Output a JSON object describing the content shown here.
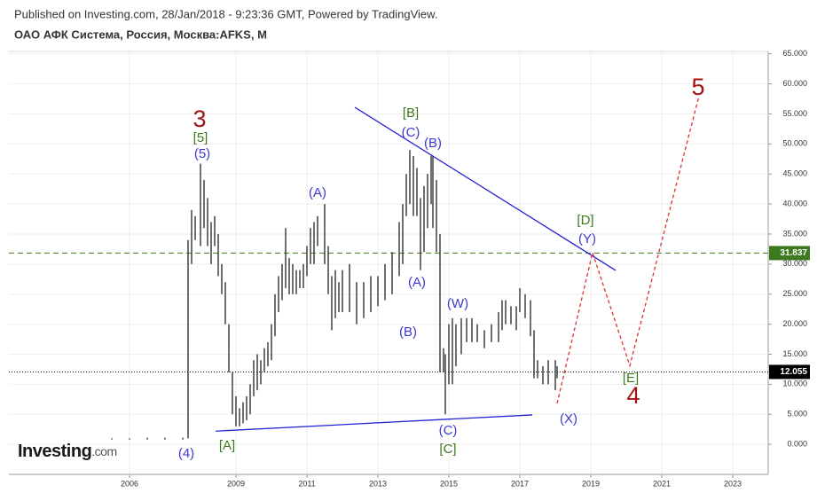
{
  "chart_data": {
    "type": "ohlc",
    "published": "Published on Investing.com, 28/Jan/2018 - 9:23:36 GMT, Powered by TradingView.",
    "title": "ОАО АФК Система, Россия, Москва:AFKS, M",
    "logo": {
      "brand": "Investing",
      "suffix": ".com"
    },
    "xlim": [
      2002.6,
      2024
    ],
    "xticks": [
      2006,
      2009,
      2011,
      2013,
      2015,
      2017,
      2019,
      2021,
      2023
    ],
    "ylim": [
      -5,
      65.4
    ],
    "yticks": [
      {
        "value": 0,
        "label": "0.000"
      },
      {
        "value": 5,
        "label": "5.000"
      },
      {
        "value": 10,
        "label": "10.000"
      },
      {
        "value": 15,
        "label": "15.000"
      },
      {
        "value": 20,
        "label": "20.000"
      },
      {
        "value": 25,
        "label": "25.000"
      },
      {
        "value": 30,
        "label": "30.000"
      },
      {
        "value": 35,
        "label": "35.000"
      },
      {
        "value": 40,
        "label": "40.000"
      },
      {
        "value": 45,
        "label": "45.000"
      },
      {
        "value": 50,
        "label": "50.000"
      },
      {
        "value": 55,
        "label": "55.000"
      },
      {
        "value": 60,
        "label": "60.000"
      },
      {
        "value": 65,
        "label": "65.000"
      }
    ],
    "grid": true,
    "color": "#222222",
    "x": [
      2005.5,
      2006.0,
      2006.5,
      2007.0,
      2007.5,
      2007.65,
      2007.75,
      2007.85,
      2008.0,
      2008.1,
      2008.2,
      2008.3,
      2008.4,
      2008.5,
      2008.6,
      2008.7,
      2008.8,
      2008.9,
      2009.0,
      2009.1,
      2009.2,
      2009.3,
      2009.4,
      2009.5,
      2009.6,
      2009.7,
      2009.8,
      2009.9,
      2010.0,
      2010.1,
      2010.2,
      2010.3,
      2010.4,
      2010.5,
      2010.6,
      2010.7,
      2010.8,
      2010.9,
      2011.0,
      2011.1,
      2011.2,
      2011.3,
      2011.5,
      2011.6,
      2011.7,
      2011.8,
      2011.9,
      2012.0,
      2012.2,
      2012.4,
      2012.6,
      2012.8,
      2013.0,
      2013.2,
      2013.4,
      2013.6,
      2013.7,
      2013.8,
      2013.9,
      2014.0,
      2014.1,
      2014.2,
      2014.3,
      2014.4,
      2014.5,
      2014.55,
      2014.65,
      2014.75,
      2014.85,
      2014.9,
      2015.0,
      2015.1,
      2015.2,
      2015.35,
      2015.5,
      2015.65,
      2015.8,
      2016.0,
      2016.2,
      2016.4,
      2016.5,
      2016.6,
      2016.75,
      2016.9,
      2017.0,
      2017.15,
      2017.3,
      2017.4,
      2017.5,
      2017.65,
      2017.8,
      2018.0,
      2018.05
    ],
    "low": [
      0.8,
      0.8,
      0.8,
      0.8,
      0.8,
      1,
      30,
      34,
      33,
      36,
      33,
      30,
      33,
      28,
      25,
      20,
      12,
      5,
      3,
      3,
      3.5,
      4,
      5,
      8,
      9,
      10,
      12,
      13,
      14,
      18,
      22,
      24,
      26,
      25,
      25,
      25,
      26,
      26,
      28,
      30,
      30,
      33,
      30,
      25,
      19,
      21,
      22,
      22,
      22,
      20,
      21,
      22,
      23,
      24,
      25,
      28,
      30,
      38,
      40,
      38,
      38,
      29,
      32,
      36,
      40,
      36,
      32,
      12,
      12,
      5,
      10,
      10,
      13,
      15,
      17,
      17,
      17,
      16,
      17,
      17,
      19,
      20,
      20,
      19,
      22,
      21,
      18,
      11,
      11,
      10,
      10,
      9,
      11
    ],
    "high": [
      1.0,
      1.0,
      1.1,
      1.1,
      1.1,
      34,
      39,
      38,
      46.7,
      44,
      41,
      37,
      38,
      35,
      30,
      27,
      20,
      12,
      8,
      6,
      7,
      8,
      10,
      14,
      15,
      14,
      16,
      17,
      20,
      25,
      28,
      30,
      36,
      31,
      30,
      29,
      29,
      30,
      33,
      36,
      37,
      38,
      40,
      33,
      28,
      29,
      27,
      29,
      30,
      27,
      27,
      28,
      28,
      30,
      32,
      37,
      40,
      45,
      49,
      48,
      46,
      41,
      43,
      45,
      48,
      48,
      44,
      35,
      16,
      15,
      20,
      21,
      20,
      21,
      21,
      21,
      20,
      19,
      20,
      22,
      24,
      24,
      23,
      23,
      26,
      25,
      24,
      19,
      14,
      13,
      14,
      14,
      13
    ],
    "levels": [
      {
        "value": 31.837,
        "color": "#3d7a1f",
        "style": "dashed"
      },
      {
        "value": 12.055,
        "color": "#000000",
        "style": "dotted"
      }
    ],
    "trendlines": [
      {
        "x": [
          2012.35,
          2019.7
        ],
        "values": [
          56.1,
          28.95
        ],
        "color": "#2323d6"
      },
      {
        "x": [
          2008.43,
          2017.35
        ],
        "values": [
          2.2,
          4.9
        ],
        "color": "#2323d6"
      }
    ],
    "projection": {
      "x": [
        2018.05,
        2019.05,
        2020.1,
        2022.05
      ],
      "values": [
        6.8,
        31.9,
        13.1,
        58.0
      ],
      "color": "#e03030"
    },
    "annotations": [
      {
        "text": "3",
        "color": "#a31313",
        "size": "big"
      },
      {
        "text": "[5]",
        "color": "#3d7a1f"
      },
      {
        "text": "(5)",
        "color": "#3a3ad0"
      },
      {
        "text": "(4)",
        "color": "#3a3ad0"
      },
      {
        "text": "[A]",
        "color": "#3d7a1f"
      },
      {
        "text": "(A)",
        "color": "#3a3ad0"
      },
      {
        "text": "[B]",
        "color": "#3d7a1f"
      },
      {
        "text": "(C)",
        "color": "#3a3ad0"
      },
      {
        "text": "(B)",
        "color": "#3a3ad0"
      },
      {
        "text": "(A)",
        "color": "#3a3ad0"
      },
      {
        "text": "(B)",
        "color": "#3a3ad0"
      },
      {
        "text": "(W)",
        "color": "#3a3ad0"
      },
      {
        "text": "(C)",
        "color": "#3a3ad0"
      },
      {
        "text": "[C]",
        "color": "#3d7a1f"
      },
      {
        "text": "[D]",
        "color": "#3d7a1f"
      },
      {
        "text": "(Y)",
        "color": "#3a3ad0"
      },
      {
        "text": "(X)",
        "color": "#3a3ad0"
      },
      {
        "text": "[E]",
        "color": "#3d7a1f"
      },
      {
        "text": "4",
        "color": "#a31313",
        "size": "big"
      },
      {
        "text": "5",
        "color": "#a31313",
        "size": "big"
      }
    ]
  }
}
